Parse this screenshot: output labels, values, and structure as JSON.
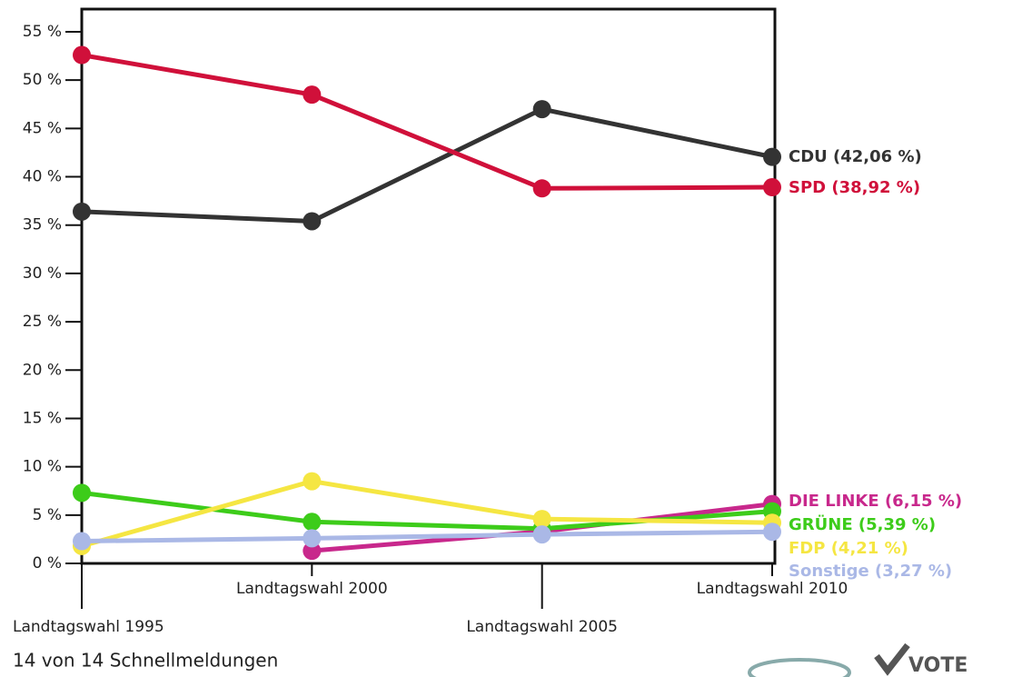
{
  "chart_data": {
    "type": "line",
    "categories": [
      "Landtagswahl 1995",
      "Landtagswahl 2000",
      "Landtagswahl 2005",
      "Landtagswahl 2010"
    ],
    "ylim": [
      0,
      55
    ],
    "yticks": [
      {
        "value": 0,
        "label": "0 %"
      },
      {
        "value": 5,
        "label": "5 %"
      },
      {
        "value": 10,
        "label": "10 %"
      },
      {
        "value": 15,
        "label": "15 %"
      },
      {
        "value": 20,
        "label": "20 %"
      },
      {
        "value": 25,
        "label": "25 %"
      },
      {
        "value": 30,
        "label": "30 %"
      },
      {
        "value": 35,
        "label": "35 %"
      },
      {
        "value": 40,
        "label": "40 %"
      },
      {
        "value": 45,
        "label": "45 %"
      },
      {
        "value": 50,
        "label": "50 %"
      },
      {
        "value": 55,
        "label": "55 %"
      }
    ],
    "series": [
      {
        "name": "CDU",
        "color": "#333333",
        "values": [
          36.4,
          35.4,
          47.0,
          42.06
        ],
        "value_labels": [
          null,
          null,
          null,
          "CDU (42,06 %)"
        ]
      },
      {
        "name": "SPD",
        "color": "#d0103a",
        "values": [
          52.6,
          48.5,
          38.8,
          38.92
        ],
        "value_labels": [
          null,
          null,
          null,
          "SPD (38,92 %)"
        ]
      },
      {
        "name": "DIE LINKE",
        "color": "#c8288c",
        "values": [
          null,
          1.3,
          3.3,
          6.15
        ],
        "value_labels": [
          null,
          null,
          null,
          "DIE LINKE (6,15 %)"
        ]
      },
      {
        "name": "GRÜNE",
        "color": "#3dcc1a",
        "values": [
          7.3,
          4.3,
          3.6,
          5.39
        ],
        "value_labels": [
          null,
          null,
          null,
          "GRÜNE (5,39 %)"
        ]
      },
      {
        "name": "FDP",
        "color": "#f5e642",
        "values": [
          1.8,
          8.5,
          4.6,
          4.21
        ],
        "value_labels": [
          null,
          null,
          null,
          "FDP (4,21 %)"
        ]
      },
      {
        "name": "Sonstige",
        "color": "#aab8e6",
        "values": [
          2.3,
          2.6,
          3.0,
          3.27
        ],
        "value_labels": [
          null,
          null,
          null,
          "Sonstige (3,27 %)"
        ]
      }
    ]
  },
  "footer": "14 von 14 Schnellmeldungen",
  "logo": "VOTE"
}
